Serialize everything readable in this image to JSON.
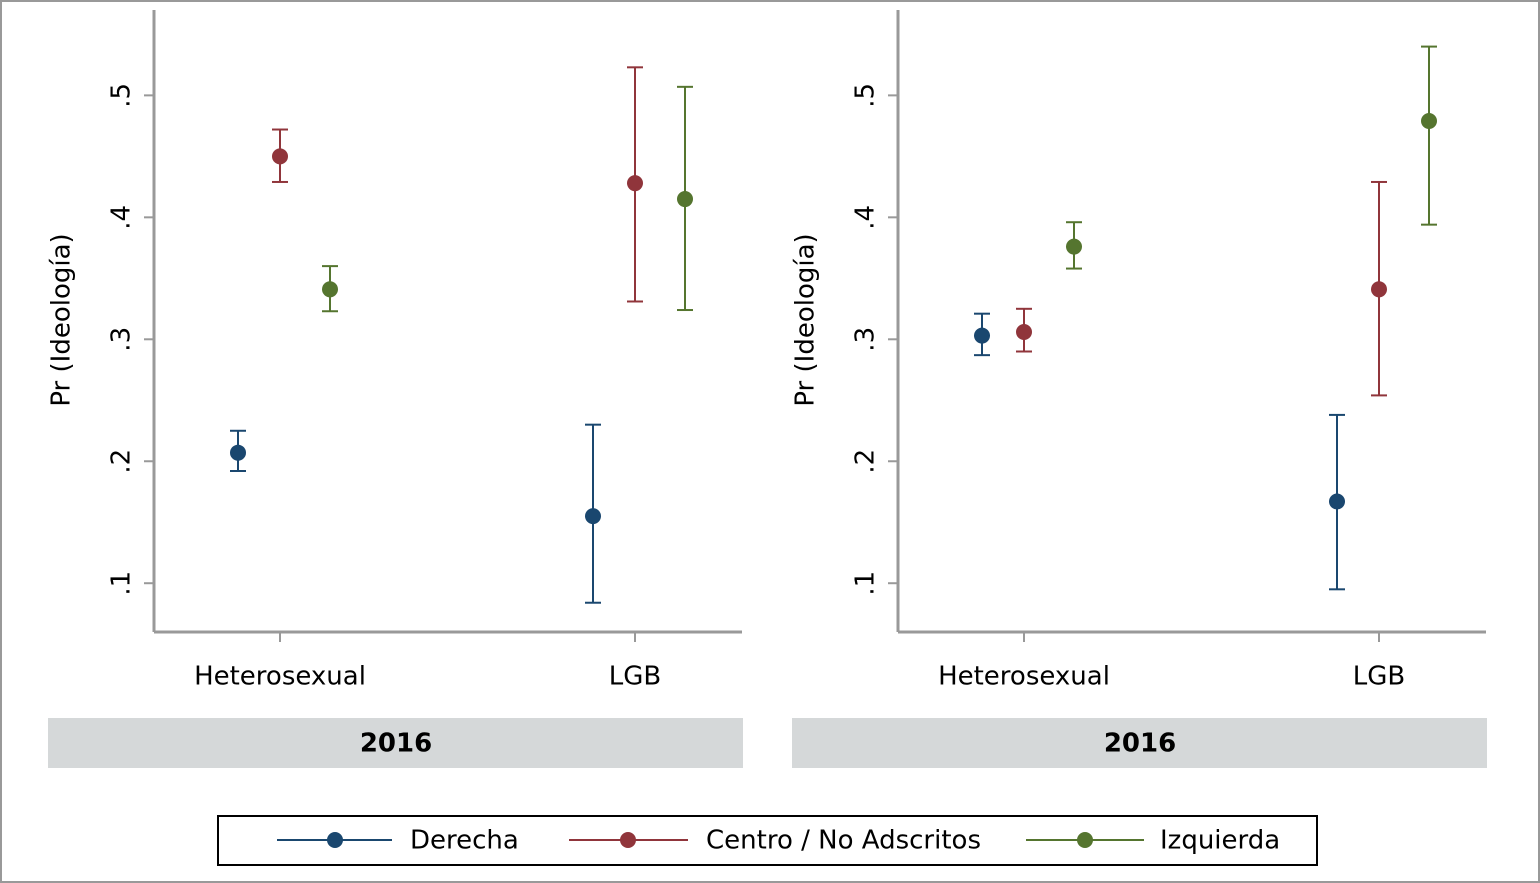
{
  "chart_data": [
    {
      "type": "errorbar",
      "title": "2016",
      "y_label": "Pr (Ideología)",
      "categories": [
        "Heterosexual",
        "LGB"
      ],
      "ylim": [
        0.06,
        0.57
      ],
      "yticks": [
        {
          "value": 0.1,
          "label": ".1"
        },
        {
          "value": 0.2,
          "label": ".2"
        },
        {
          "value": 0.3,
          "label": ".3"
        },
        {
          "value": 0.4,
          "label": ".4"
        },
        {
          "value": 0.5,
          "label": ".5"
        }
      ],
      "series": [
        {
          "name": "Derecha",
          "color": "#1a476f",
          "values": [
            0.207,
            0.155
          ],
          "lower": [
            0.192,
            0.084
          ],
          "upper": [
            0.225,
            0.23
          ]
        },
        {
          "name": "Centro / No Adscritos",
          "color": "#90353b",
          "values": [
            0.45,
            0.428
          ],
          "lower": [
            0.429,
            0.331
          ],
          "upper": [
            0.472,
            0.523
          ]
        },
        {
          "name": "Izquierda",
          "color": "#55752f",
          "values": [
            0.341,
            0.415
          ],
          "lower": [
            0.323,
            0.324
          ],
          "upper": [
            0.36,
            0.507
          ]
        }
      ]
    },
    {
      "type": "errorbar",
      "title": "2016",
      "y_label": "Pr (Ideología)",
      "categories": [
        "Heterosexual",
        "LGB"
      ],
      "ylim": [
        0.06,
        0.57
      ],
      "yticks": [
        {
          "value": 0.1,
          "label": ".1"
        },
        {
          "value": 0.2,
          "label": ".2"
        },
        {
          "value": 0.3,
          "label": ".3"
        },
        {
          "value": 0.4,
          "label": ".4"
        },
        {
          "value": 0.5,
          "label": ".5"
        }
      ],
      "series": [
        {
          "name": "Derecha",
          "color": "#1a476f",
          "values": [
            0.303,
            0.167
          ],
          "lower": [
            0.287,
            0.095
          ],
          "upper": [
            0.321,
            0.238
          ]
        },
        {
          "name": "Centro / No Adscritos",
          "color": "#90353b",
          "values": [
            0.306,
            0.341
          ],
          "lower": [
            0.29,
            0.254
          ],
          "upper": [
            0.325,
            0.429
          ]
        },
        {
          "name": "Izquierda",
          "color": "#55752f",
          "values": [
            0.376,
            0.479
          ],
          "lower": [
            0.358,
            0.394
          ],
          "upper": [
            0.396,
            0.54
          ]
        }
      ]
    }
  ]
}
